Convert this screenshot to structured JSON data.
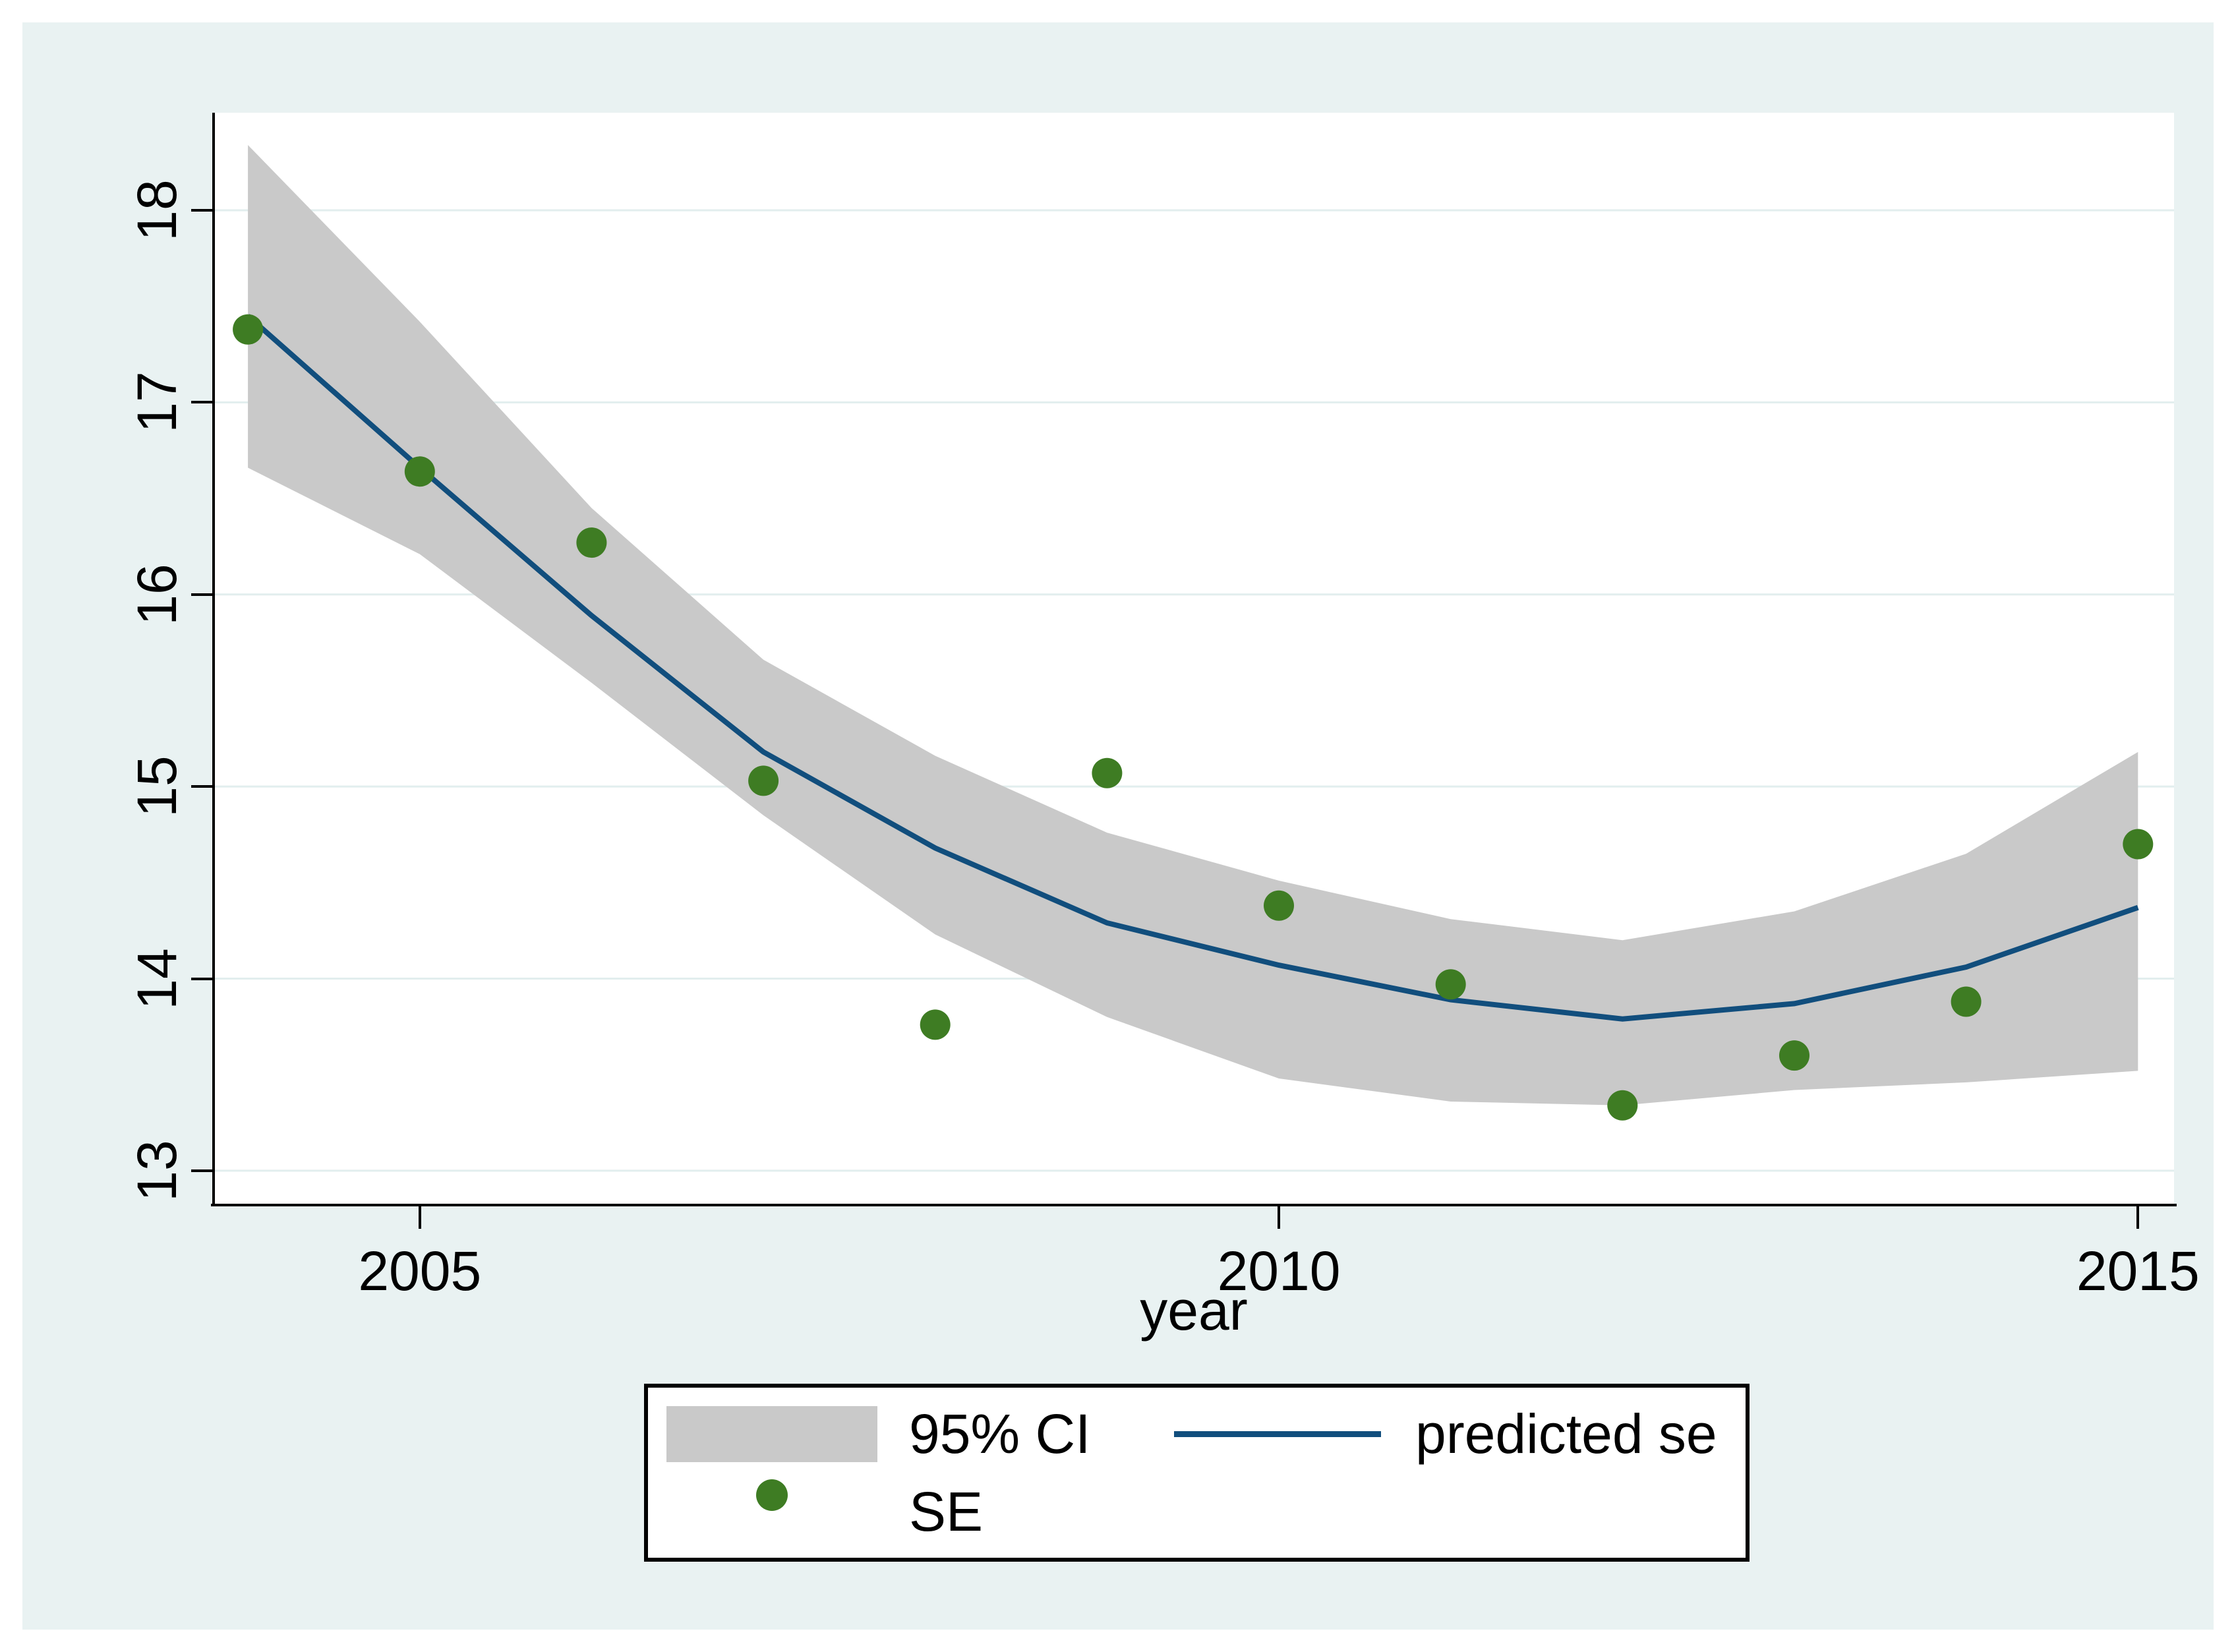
{
  "colors": {
    "page_bg": "#ffffff",
    "canvas_bg": "#e9f2f2",
    "plot_bg": "#ffffff",
    "gridline": "#e2eeee",
    "axis": "#000000",
    "ci_band": "#c9c9c9",
    "predicted_line": "#114e7d",
    "se_marker": "#3e7c23",
    "text": "#000000"
  },
  "chart_data": {
    "type": "line",
    "subtype": "scatter-with-fit-and-ci-band",
    "title": "",
    "xlabel": "year",
    "ylabel": "",
    "x": [
      2004,
      2005,
      2006,
      2007,
      2008,
      2009,
      2010,
      2011,
      2012,
      2013,
      2014,
      2015
    ],
    "x_ticks": [
      2005,
      2010,
      2015
    ],
    "x_tick_labels": [
      "2005",
      "2010",
      "2015"
    ],
    "y_ticks": [
      13,
      14,
      15,
      16,
      17,
      18
    ],
    "y_tick_labels": [
      "13",
      "14",
      "15",
      "16",
      "17",
      "18"
    ],
    "xlim": [
      2003.8,
      2015.21
    ],
    "ylim": [
      12.828,
      18.508
    ],
    "grid": "horizontal",
    "legend_position": "bottom",
    "series": [
      {
        "name": "95% CI",
        "type": "band",
        "upper": [
          18.34,
          17.42,
          16.45,
          15.66,
          15.16,
          14.76,
          14.51,
          14.31,
          14.2,
          14.35,
          14.65,
          15.18
        ],
        "lower": [
          16.66,
          16.21,
          15.54,
          14.85,
          14.23,
          13.8,
          13.48,
          13.36,
          13.34,
          13.42,
          13.46,
          13.52
        ]
      },
      {
        "name": "predicted se",
        "type": "line",
        "values": [
          17.45,
          16.66,
          15.89,
          15.18,
          14.68,
          14.29,
          14.07,
          13.89,
          13.79,
          13.87,
          14.06,
          14.37
        ]
      },
      {
        "name": "SE",
        "type": "scatter",
        "values": [
          17.38,
          16.64,
          16.27,
          15.03,
          13.76,
          15.07,
          14.38,
          13.97,
          13.34,
          13.6,
          13.88,
          14.7
        ]
      }
    ]
  },
  "axis_title": {
    "x": "year"
  }
}
